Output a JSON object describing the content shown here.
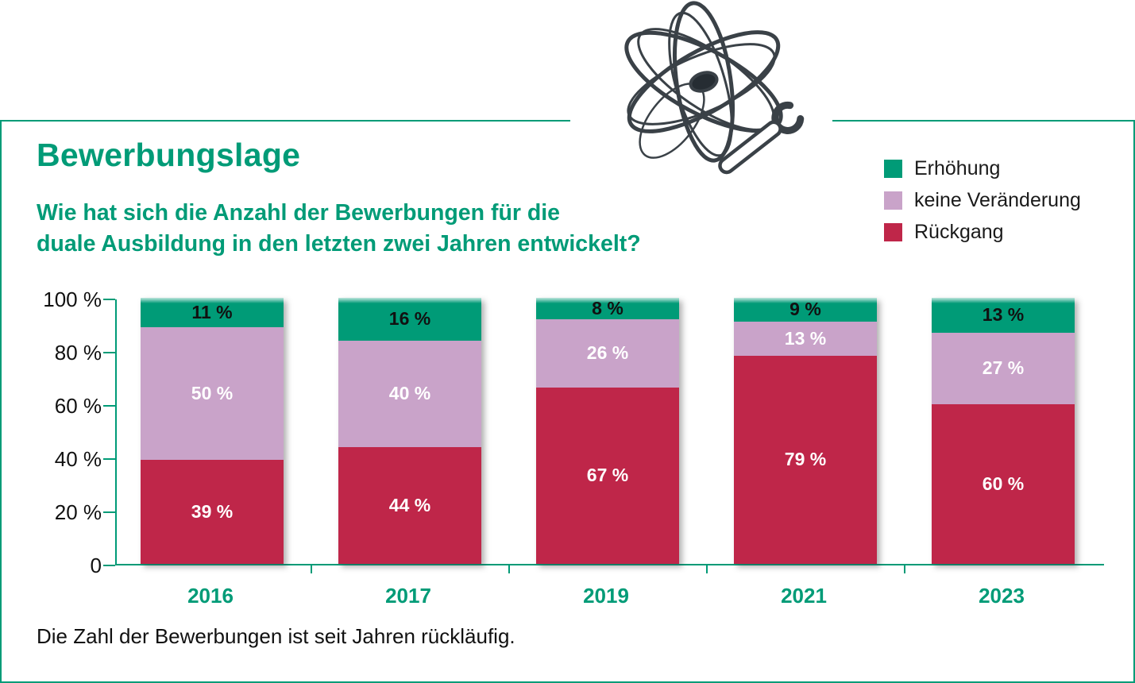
{
  "header": {
    "title": "Bewerbungslage",
    "subtitle_lines": [
      "Wie hat sich die Anzahl der Bewerbungen für die",
      "duale Ausbildung in den letzten zwei Jahren entwickelt?"
    ]
  },
  "legend": {
    "items": [
      {
        "label": "Erhöhung",
        "color": "#009b77"
      },
      {
        "label": "keine Veränderung",
        "color": "#c9a3c9"
      },
      {
        "label": "Rückgang",
        "color": "#bf2649"
      }
    ]
  },
  "chart_data": {
    "type": "bar",
    "stacked": true,
    "title": "Bewerbungslage",
    "question": "Wie hat sich die Anzahl der Bewerbungen für die duale Ausbildung in den letzten zwei Jahren entwickelt?",
    "categories": [
      "2016",
      "2017",
      "2019",
      "2021",
      "2023"
    ],
    "series": [
      {
        "name": "Rückgang",
        "color": "#bf2649",
        "label_color": "#ffffff",
        "values": [
          39,
          44,
          67,
          79,
          60
        ]
      },
      {
        "name": "keine Veränderung",
        "color": "#c9a3c9",
        "label_color": "#ffffff",
        "values": [
          50,
          40,
          26,
          13,
          27
        ]
      },
      {
        "name": "Erhöhung",
        "color": "#009b77",
        "label_color": "#111111",
        "values": [
          11,
          16,
          8,
          9,
          13
        ]
      }
    ],
    "y_axis": {
      "ticks": [
        {
          "value": 100,
          "label": "100 %"
        },
        {
          "value": 80,
          "label": "80 %"
        },
        {
          "value": 60,
          "label": "60 %"
        },
        {
          "value": 40,
          "label": "40 %"
        },
        {
          "value": 20,
          "label": "20 %"
        },
        {
          "value": 0,
          "label": "0"
        }
      ],
      "ylim": [
        0,
        100
      ]
    },
    "value_suffix": " %",
    "legend_position": "top-right",
    "grid": false
  },
  "footnote": "Die Zahl der Bewerbungen ist seit Jahren rückläufig.",
  "colors": {
    "accent": "#009b77",
    "mauve": "#c9a3c9",
    "red": "#bf2649",
    "text": "#1a1a1a",
    "doodle": "#3a4147"
  }
}
